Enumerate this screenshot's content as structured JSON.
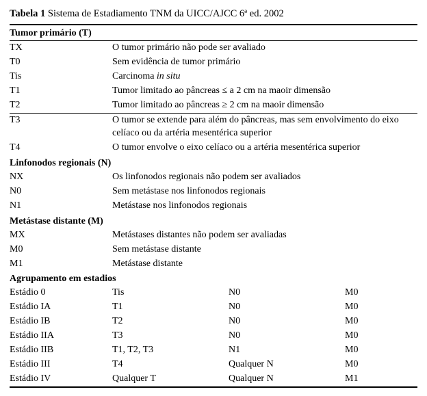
{
  "caption": {
    "label": "Tabela 1",
    "text": "Sistema de Estadiamento TNM da UICC/AJCC 6ª ed. 2002"
  },
  "sections": {
    "t": {
      "title": "Tumor primário (T)",
      "rows": [
        {
          "code": "TX",
          "desc": "O tumor primário não pode ser avaliado"
        },
        {
          "code": "T0",
          "desc": "Sem evidência de tumor primário"
        },
        {
          "code": "Tis",
          "desc_prefix": "Carcinoma ",
          "desc_italic": "in situ"
        },
        {
          "code": "T1",
          "desc": "Tumor limitado ao pâncreas ≤ a 2 cm na maoir dimensão"
        },
        {
          "code": "T2",
          "desc": "Tumor limitado ao pâncreas ≥ 2 cm na maoir dimensão"
        },
        {
          "code": "T3",
          "desc": "O tumor se extende para além do pâncreas, mas sem envolvimento do eixo celíaco ou da artéria mesentérica superior"
        },
        {
          "code": "T4",
          "desc": "O tumor envolve o eixo celíaco ou a artéria mesentérica superior"
        }
      ]
    },
    "n": {
      "title": "Linfonodos regionais (N)",
      "rows": [
        {
          "code": "NX",
          "desc": "Os linfonodos regionais não podem ser avaliados"
        },
        {
          "code": "N0",
          "desc": "Sem metástase nos linfonodos regionais"
        },
        {
          "code": "N1",
          "desc": "Metástase nos linfonodos regionais"
        }
      ]
    },
    "m": {
      "title": "Metástase distante (M)",
      "rows": [
        {
          "code": "MX",
          "desc": "Metástases distantes não podem ser avaliadas"
        },
        {
          "code": "M0",
          "desc": "Sem metástase distante"
        },
        {
          "code": "M1",
          "desc": "Metástase distante"
        }
      ]
    },
    "stage": {
      "title": "Agrupamento em estadios",
      "rows": [
        {
          "stage": "Estádio 0",
          "t": "Tis",
          "n": "N0",
          "m": "M0"
        },
        {
          "stage": "Estádio IA",
          "t": "T1",
          "n": "N0",
          "m": "M0"
        },
        {
          "stage": "Estádio IB",
          "t": "T2",
          "n": "N0",
          "m": "M0"
        },
        {
          "stage": "Estádio IIA",
          "t": "T3",
          "n": "N0",
          "m": "M0"
        },
        {
          "stage": "Estádio IIB",
          "t": "T1, T2, T3",
          "n": "N1",
          "m": "M0"
        },
        {
          "stage": "Estádio III",
          "t": "T4",
          "n": "Qualquer N",
          "m": "M0"
        },
        {
          "stage": "Estádio IV",
          "t": "Qualquer T",
          "n": "Qualquer N",
          "m": "M1"
        }
      ]
    }
  }
}
